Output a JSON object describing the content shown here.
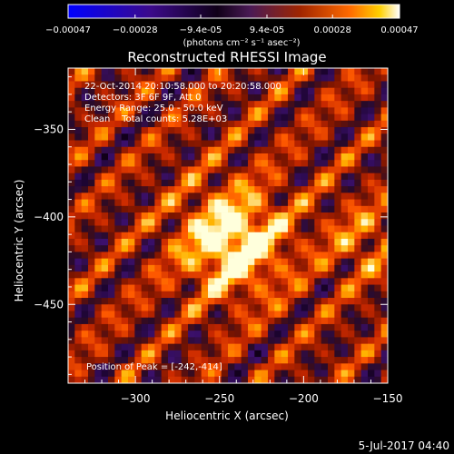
{
  "colors": {
    "background": "#000000",
    "text": "#ffffff",
    "colormap": [
      "#0000ff",
      "#3b0a8a",
      "#100018",
      "#3d1a55",
      "#9a2b00",
      "#ff5a00",
      "#ffd000",
      "#ffffff"
    ]
  },
  "colorbar": {
    "tick_labels": [
      "-0.00047",
      "-0.00028",
      "-9.4e-05",
      "9.4e-05",
      "0.00028",
      "0.00047"
    ],
    "range": [
      -0.00047,
      0.00047
    ],
    "units": "(photons cm⁻² s⁻¹ asec⁻²)"
  },
  "chart_data": {
    "type": "heatmap",
    "title": "Reconstructed RHESSI Image",
    "xlabel": "Heliocentric X (arcsec)",
    "ylabel": "Heliocentric Y (arcsec)",
    "xlim": [
      -340,
      -150
    ],
    "ylim": [
      -495,
      -315
    ],
    "x_ticks": [
      -300,
      -250,
      -200,
      -150
    ],
    "x_tick_labels": [
      "−300",
      "−250",
      "−200",
      "−150"
    ],
    "y_ticks": [
      -350,
      -400,
      -450
    ],
    "y_tick_labels": [
      "−350",
      "−400",
      "−450"
    ],
    "peak": {
      "x": -242,
      "y": -414
    },
    "annotations": [
      "22-Oct-2014 20:10:58.000 to 20:20:58.000",
      "Detectors: 3F 6F 9F, Att 0",
      "Energy Range: 25.0 - 50.0 keV",
      "Clean    Total counts: 5.28E+03"
    ],
    "peak_label": "Position of Peak = [-242,-414]"
  },
  "footer": {
    "date": "5-Jul-2017 04:40"
  }
}
